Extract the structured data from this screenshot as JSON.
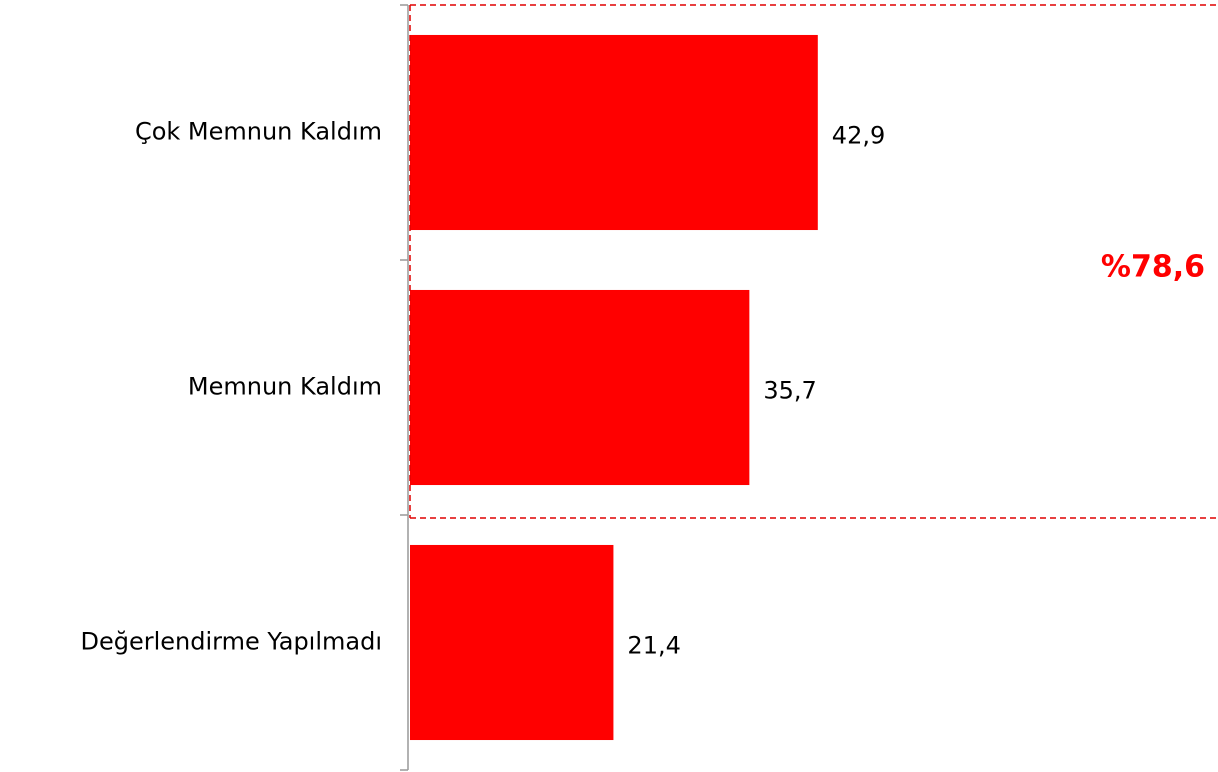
{
  "chart_data": {
    "type": "hbar",
    "categories": [
      "Çok Memnun Kaldım",
      "Memnun Kaldım",
      "Değerlendirme Yapılmadı"
    ],
    "values": [
      42.9,
      35.7,
      21.4
    ],
    "value_labels": [
      "42,9",
      "35,7",
      "21,4"
    ],
    "color": "#ff0000",
    "xlim": [
      0,
      85
    ],
    "annotation": "%78,6"
  }
}
